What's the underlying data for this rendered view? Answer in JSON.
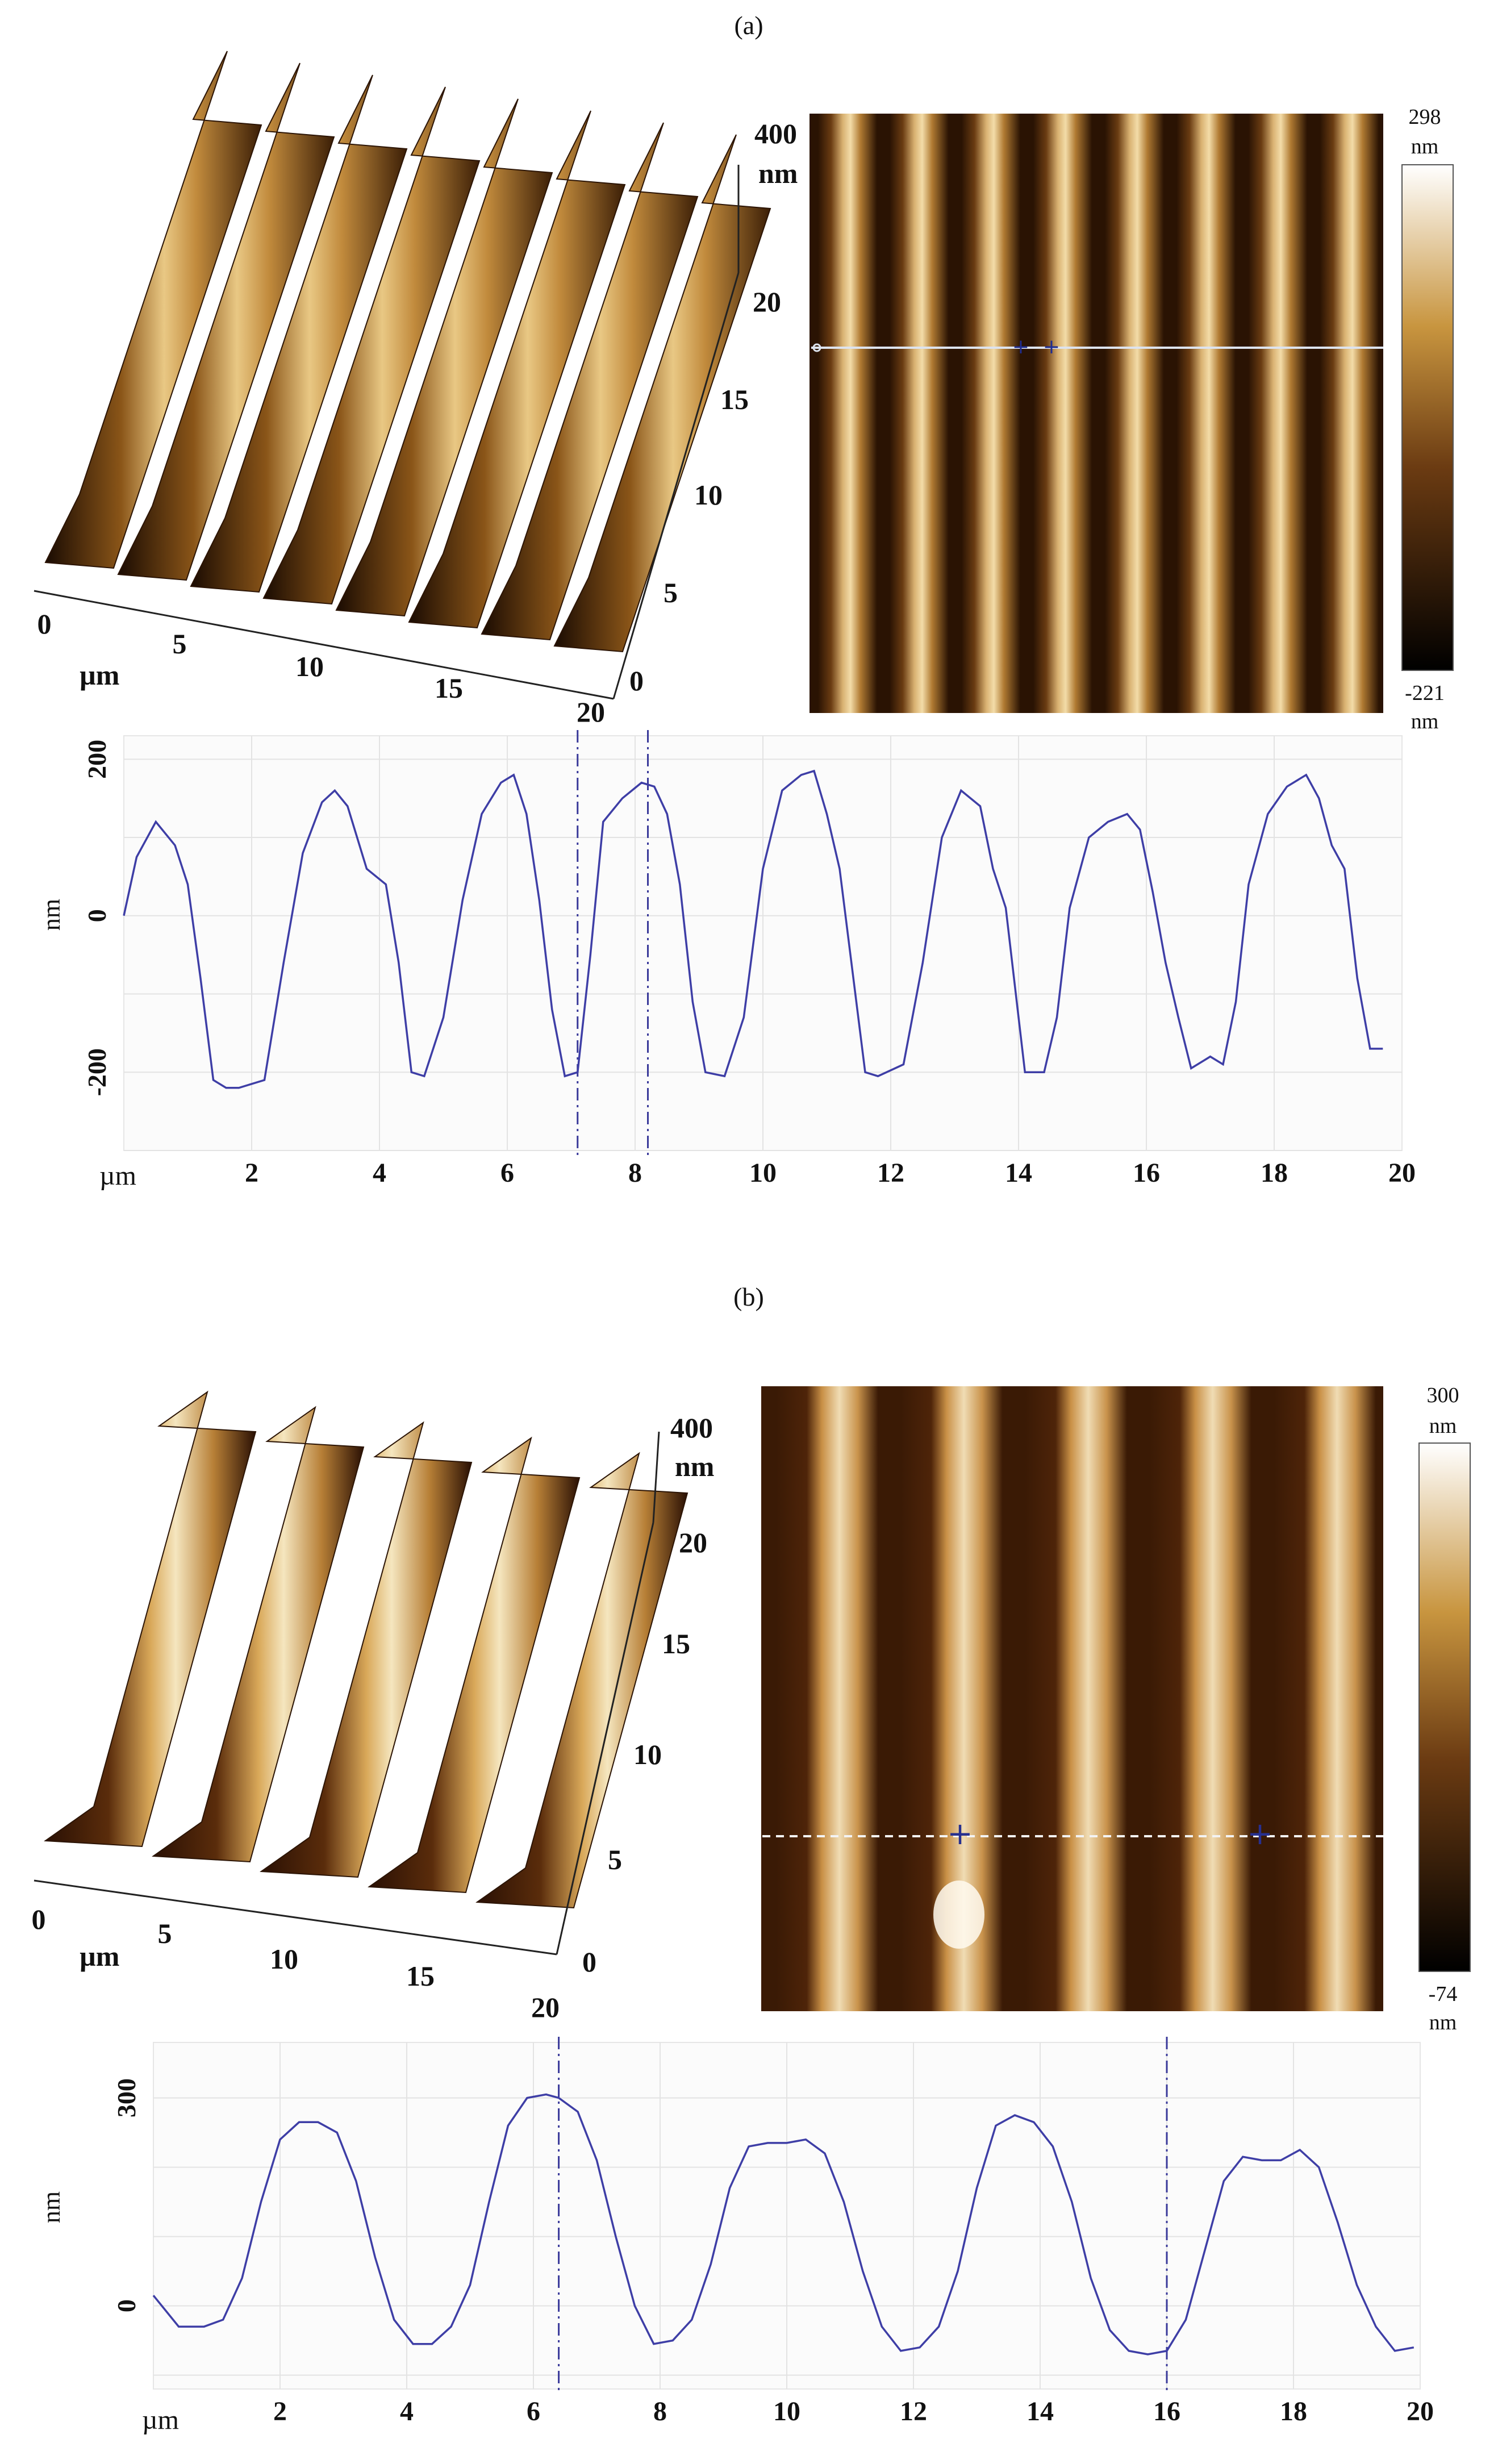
{
  "panels": [
    {
      "id": "a",
      "caption": "(a)",
      "surface3d": {
        "z_labels": [
          "400",
          "nm"
        ],
        "x_ticks": [
          "0",
          "5",
          "10",
          "15",
          "20"
        ],
        "x_unit": "µm",
        "y_ticks": [
          "0",
          "5",
          "10",
          "15",
          "20"
        ],
        "stripes": 8
      },
      "topography_map": {
        "stripes": 8,
        "colorbar": {
          "max": "298",
          "max_unit": "nm",
          "min": "-221",
          "min_unit": "nm"
        }
      },
      "profile": {
        "y_axis_label": "nm",
        "y_ticks": [
          "200",
          "0",
          "-200"
        ],
        "x_unit": "µm",
        "x_ticks": [
          "2",
          "4",
          "6",
          "8",
          "10",
          "12",
          "14",
          "16",
          "18",
          "20"
        ]
      }
    },
    {
      "id": "b",
      "caption": "(b)",
      "surface3d": {
        "z_labels": [
          "400",
          "nm"
        ],
        "x_ticks": [
          "0",
          "5",
          "10",
          "15",
          "20"
        ],
        "x_unit": "µm",
        "y_ticks": [
          "0",
          "5",
          "10",
          "15",
          "20"
        ],
        "stripes": 5
      },
      "topography_map": {
        "stripes": 5,
        "colorbar": {
          "max": "300",
          "max_unit": "nm",
          "min": "-74",
          "min_unit": "nm"
        }
      },
      "profile": {
        "y_axis_label": "nm",
        "y_ticks": [
          "300",
          "0"
        ],
        "x_unit": "µm",
        "x_ticks": [
          "2",
          "4",
          "6",
          "8",
          "10",
          "12",
          "14",
          "16",
          "18",
          "20"
        ]
      }
    }
  ],
  "chart_data": [
    {
      "type": "line",
      "panel": "a",
      "x_unit": "µm",
      "y_unit": "nm",
      "xlim": [
        0,
        20
      ],
      "ylim": [
        -300,
        230
      ],
      "cursors_x": [
        7.1,
        8.2
      ],
      "x": [
        0.0,
        0.2,
        0.5,
        0.8,
        1.0,
        1.2,
        1.4,
        1.6,
        1.8,
        2.2,
        2.5,
        2.8,
        3.1,
        3.3,
        3.5,
        3.8,
        4.1,
        4.3,
        4.5,
        4.7,
        5.0,
        5.3,
        5.6,
        5.9,
        6.1,
        6.3,
        6.5,
        6.7,
        6.9,
        7.1,
        7.3,
        7.5,
        7.8,
        8.1,
        8.3,
        8.5,
        8.7,
        8.9,
        9.1,
        9.4,
        9.7,
        10.0,
        10.3,
        10.6,
        10.8,
        11.0,
        11.2,
        11.4,
        11.6,
        11.8,
        12.2,
        12.5,
        12.8,
        13.1,
        13.4,
        13.6,
        13.8,
        14.1,
        14.4,
        14.6,
        14.8,
        15.1,
        15.4,
        15.7,
        15.9,
        16.1,
        16.3,
        16.5,
        16.7,
        16.9,
        17.0,
        17.2,
        17.4,
        17.6,
        17.9,
        18.2,
        18.5,
        18.7,
        18.9,
        19.1,
        19.3,
        19.5,
        19.7
      ],
      "y": [
        0,
        75,
        120,
        90,
        40,
        -80,
        -210,
        -220,
        -220,
        -210,
        -60,
        80,
        145,
        160,
        140,
        60,
        40,
        -60,
        -200,
        -205,
        -130,
        20,
        130,
        170,
        180,
        130,
        20,
        -120,
        -205,
        -200,
        -50,
        120,
        150,
        170,
        165,
        130,
        40,
        -110,
        -200,
        -205,
        -130,
        60,
        160,
        180,
        185,
        130,
        60,
        -70,
        -200,
        -205,
        -190,
        -60,
        100,
        160,
        140,
        60,
        10,
        -200,
        -200,
        -130,
        10,
        100,
        120,
        130,
        110,
        30,
        -60,
        -130,
        -195,
        -185,
        -180,
        -190,
        -110,
        40,
        130,
        165,
        180,
        150,
        90,
        60,
        -80,
        -170,
        -170
      ]
    },
    {
      "type": "line",
      "panel": "b",
      "x_unit": "µm",
      "y_unit": "nm",
      "xlim": [
        0,
        20
      ],
      "ylim": [
        -120,
        380
      ],
      "cursors_x": [
        6.4,
        16.0
      ],
      "x": [
        0.0,
        0.4,
        0.8,
        1.1,
        1.4,
        1.7,
        2.0,
        2.3,
        2.6,
        2.9,
        3.2,
        3.5,
        3.8,
        4.1,
        4.4,
        4.7,
        5.0,
        5.3,
        5.6,
        5.9,
        6.2,
        6.4,
        6.7,
        7.0,
        7.3,
        7.6,
        7.9,
        8.2,
        8.5,
        8.8,
        9.1,
        9.4,
        9.7,
        10.0,
        10.3,
        10.6,
        10.9,
        11.2,
        11.5,
        11.8,
        12.1,
        12.4,
        12.7,
        13.0,
        13.3,
        13.6,
        13.9,
        14.2,
        14.5,
        14.8,
        15.1,
        15.4,
        15.7,
        16.0,
        16.3,
        16.6,
        16.9,
        17.2,
        17.5,
        17.8,
        18.1,
        18.4,
        18.7,
        19.0,
        19.3,
        19.6,
        19.9
      ],
      "y": [
        15,
        -30,
        -30,
        -20,
        40,
        150,
        240,
        265,
        265,
        250,
        180,
        70,
        -20,
        -55,
        -55,
        -30,
        30,
        150,
        260,
        300,
        305,
        300,
        280,
        210,
        100,
        0,
        -55,
        -50,
        -20,
        60,
        170,
        230,
        235,
        235,
        240,
        220,
        150,
        50,
        -30,
        -65,
        -60,
        -30,
        50,
        170,
        260,
        275,
        265,
        230,
        150,
        40,
        -35,
        -65,
        -70,
        -65,
        -20,
        80,
        180,
        215,
        210,
        210,
        225,
        200,
        120,
        30,
        -30,
        -65,
        -60
      ]
    }
  ]
}
